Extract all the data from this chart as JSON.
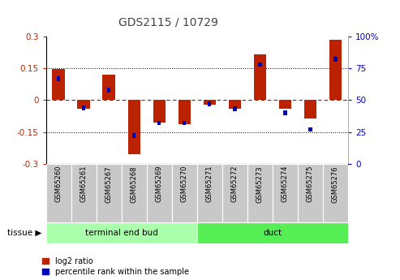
{
  "title": "GDS2115 / 10729",
  "samples": [
    "GSM65260",
    "GSM65261",
    "GSM65267",
    "GSM65268",
    "GSM65269",
    "GSM65270",
    "GSM65271",
    "GSM65272",
    "GSM65273",
    "GSM65274",
    "GSM65275",
    "GSM65276"
  ],
  "log2_ratio": [
    0.148,
    -0.04,
    0.12,
    -0.255,
    -0.105,
    -0.115,
    -0.02,
    -0.04,
    0.215,
    -0.04,
    -0.085,
    0.285
  ],
  "percentile": [
    67,
    44,
    58,
    22,
    32,
    32,
    47,
    43,
    78,
    40,
    27,
    82
  ],
  "tissue_groups": [
    {
      "label": "terminal end bud",
      "start": 0,
      "end": 6,
      "color": "#aaffaa"
    },
    {
      "label": "duct",
      "start": 6,
      "end": 12,
      "color": "#55ee55"
    }
  ],
  "ylim": [
    -0.3,
    0.3
  ],
  "yticks_left": [
    -0.3,
    -0.15,
    0,
    0.15,
    0.3
  ],
  "yticks_right": [
    0,
    25,
    50,
    75,
    100
  ],
  "bar_width": 0.5,
  "red_color": "#bb2200",
  "blue_color": "#0000bb",
  "zero_line_color": "#cc0000",
  "legend_red_label": "log2 ratio",
  "legend_blue_label": "percentile rank within the sample",
  "tissue_label": "tissue",
  "figsize": [
    4.93,
    3.45
  ],
  "dpi": 100
}
